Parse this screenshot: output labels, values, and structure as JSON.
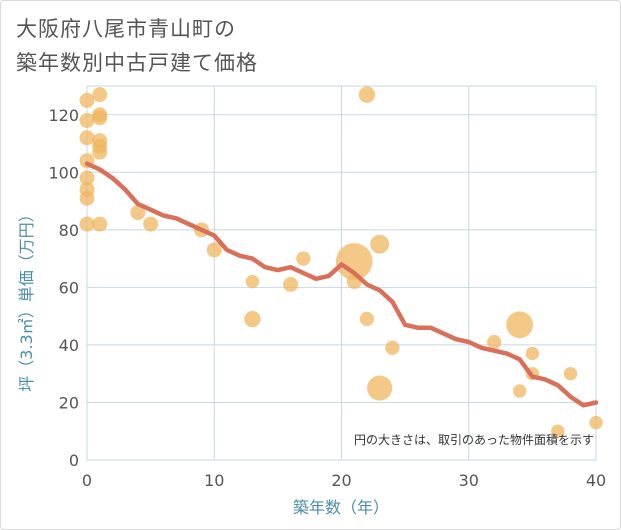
{
  "chart_data": {
    "type": "scatter",
    "title": [
      "大阪府八尾市青山町の",
      "築年数別中古戸建て価格"
    ],
    "xlabel": "築年数（年）",
    "ylabel": "坪（3.3㎡）単価（万円）",
    "xlim": [
      0,
      40
    ],
    "ylim": [
      0,
      130
    ],
    "xticks": [
      0,
      10,
      20,
      30,
      40
    ],
    "yticks": [
      0,
      20,
      40,
      60,
      80,
      100,
      120
    ],
    "grid": true,
    "note": "円の大きさは、取引のあった物件面積を示す",
    "colors": {
      "points": "#f0b45a",
      "trend": "#d9705a",
      "grid": "#c8d8e0",
      "text": "#555555",
      "axis_label": "#4a8fa8"
    },
    "points": [
      {
        "x": 0,
        "y": 125,
        "size": 1
      },
      {
        "x": 0,
        "y": 118,
        "size": 1
      },
      {
        "x": 0,
        "y": 112,
        "size": 1
      },
      {
        "x": 0,
        "y": 104,
        "size": 1
      },
      {
        "x": 0,
        "y": 98,
        "size": 1
      },
      {
        "x": 0,
        "y": 94,
        "size": 1
      },
      {
        "x": 0,
        "y": 91,
        "size": 1
      },
      {
        "x": 0,
        "y": 82,
        "size": 1
      },
      {
        "x": 1,
        "y": 127,
        "size": 1
      },
      {
        "x": 1,
        "y": 120,
        "size": 1
      },
      {
        "x": 1,
        "y": 119,
        "size": 1
      },
      {
        "x": 1,
        "y": 111,
        "size": 1
      },
      {
        "x": 1,
        "y": 109,
        "size": 1
      },
      {
        "x": 1,
        "y": 107,
        "size": 1
      },
      {
        "x": 1,
        "y": 82,
        "size": 1
      },
      {
        "x": 4,
        "y": 86,
        "size": 1
      },
      {
        "x": 5,
        "y": 82,
        "size": 1
      },
      {
        "x": 9,
        "y": 80,
        "size": 1
      },
      {
        "x": 10,
        "y": 73,
        "size": 1
      },
      {
        "x": 13,
        "y": 62,
        "size": 0.8
      },
      {
        "x": 13,
        "y": 49,
        "size": 1.2
      },
      {
        "x": 16,
        "y": 61,
        "size": 1
      },
      {
        "x": 17,
        "y": 70,
        "size": 0.9
      },
      {
        "x": 21,
        "y": 69,
        "size": 6
      },
      {
        "x": 21,
        "y": 62,
        "size": 1
      },
      {
        "x": 22,
        "y": 127,
        "size": 1.2
      },
      {
        "x": 22,
        "y": 49,
        "size": 0.9
      },
      {
        "x": 23,
        "y": 75,
        "size": 1.6
      },
      {
        "x": 23,
        "y": 25,
        "size": 2.8
      },
      {
        "x": 24,
        "y": 39,
        "size": 0.9
      },
      {
        "x": 32,
        "y": 41,
        "size": 0.9
      },
      {
        "x": 34,
        "y": 47,
        "size": 3.2
      },
      {
        "x": 34,
        "y": 24,
        "size": 0.8
      },
      {
        "x": 35,
        "y": 37,
        "size": 0.8
      },
      {
        "x": 35,
        "y": 30,
        "size": 0.8
      },
      {
        "x": 37,
        "y": 10,
        "size": 0.8
      },
      {
        "x": 38,
        "y": 30,
        "size": 0.8
      },
      {
        "x": 40,
        "y": 13,
        "size": 0.8
      }
    ],
    "trend": {
      "x": [
        0,
        1,
        2,
        3,
        4,
        5,
        6,
        7,
        8,
        9,
        10,
        11,
        12,
        13,
        14,
        15,
        16,
        17,
        18,
        19,
        20,
        21,
        22,
        23,
        24,
        25,
        26,
        27,
        28,
        29,
        30,
        31,
        32,
        33,
        34,
        35,
        36,
        37,
        38,
        39,
        40
      ],
      "y": [
        103,
        101,
        98,
        94,
        89,
        87,
        85,
        84,
        82,
        80,
        78,
        73,
        71,
        70,
        67,
        66,
        67,
        65,
        63,
        64,
        68,
        65,
        61,
        59,
        55,
        47,
        46,
        46,
        44,
        42,
        41,
        39,
        38,
        37,
        35,
        29,
        28,
        26,
        22,
        19,
        20
      ]
    }
  }
}
